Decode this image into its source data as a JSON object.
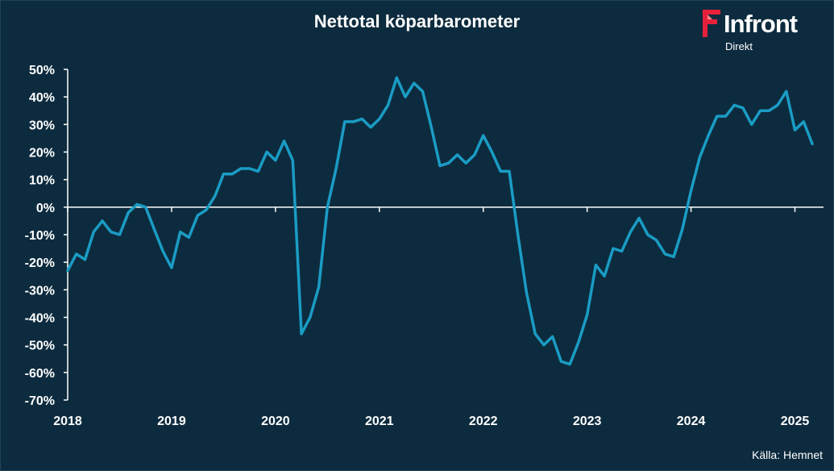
{
  "title": "Nettotal köparbarometer",
  "source": "Källa:  Hemnet",
  "logo": {
    "name": "Infront",
    "sub": "Direkt"
  },
  "colors": {
    "background": "#0d2b3e",
    "line": "#1a9cc4",
    "text": "#ffffff",
    "accent": "#e8213b"
  },
  "chart_data": {
    "type": "line",
    "title": "Nettotal köparbarometer",
    "ylim": [
      -70,
      50
    ],
    "yticks": [
      50,
      40,
      30,
      20,
      10,
      0,
      -10,
      -20,
      -30,
      -40,
      -50,
      -60,
      -70
    ],
    "ytick_labels": [
      "50%",
      "40%",
      "30%",
      "20%",
      "10%",
      "0%",
      "-10%",
      "-20%",
      "-30%",
      "-40%",
      "-50%",
      "-60%",
      "-70%"
    ],
    "xticks": [
      "2018",
      "2019",
      "2020",
      "2021",
      "2022",
      "2023",
      "2024",
      "2025"
    ],
    "xlim": [
      "2018-01",
      "2025-03"
    ],
    "grid": false,
    "legend": "none",
    "series": [
      {
        "values": [
          [
            "2018-01",
            -23
          ],
          [
            "2018-02",
            -17
          ],
          [
            "2018-03",
            -19
          ],
          [
            "2018-04",
            -9
          ],
          [
            "2018-05",
            -5
          ],
          [
            "2018-06",
            -9
          ],
          [
            "2018-07",
            -10
          ],
          [
            "2018-08",
            -2
          ],
          [
            "2018-09",
            1
          ],
          [
            "2018-10",
            0
          ],
          [
            "2018-11",
            -8
          ],
          [
            "2018-12",
            -16
          ],
          [
            "2019-01",
            -22
          ],
          [
            "2019-02",
            -9
          ],
          [
            "2019-03",
            -11
          ],
          [
            "2019-04",
            -3
          ],
          [
            "2019-05",
            -1
          ],
          [
            "2019-06",
            4
          ],
          [
            "2019-07",
            12
          ],
          [
            "2019-08",
            12
          ],
          [
            "2019-09",
            14
          ],
          [
            "2019-10",
            14
          ],
          [
            "2019-11",
            13
          ],
          [
            "2019-12",
            20
          ],
          [
            "2020-01",
            17
          ],
          [
            "2020-02",
            24
          ],
          [
            "2020-03",
            17
          ],
          [
            "2020-04",
            -46
          ],
          [
            "2020-05",
            -40
          ],
          [
            "2020-06",
            -29
          ],
          [
            "2020-07",
            0
          ],
          [
            "2020-08",
            14
          ],
          [
            "2020-09",
            31
          ],
          [
            "2020-10",
            31
          ],
          [
            "2020-11",
            32
          ],
          [
            "2020-12",
            29
          ],
          [
            "2021-01",
            32
          ],
          [
            "2021-02",
            37
          ],
          [
            "2021-03",
            47
          ],
          [
            "2021-04",
            40
          ],
          [
            "2021-05",
            45
          ],
          [
            "2021-06",
            42
          ],
          [
            "2021-07",
            29
          ],
          [
            "2021-08",
            15
          ],
          [
            "2021-09",
            16
          ],
          [
            "2021-10",
            19
          ],
          [
            "2021-11",
            16
          ],
          [
            "2021-12",
            19
          ],
          [
            "2022-01",
            26
          ],
          [
            "2022-02",
            20
          ],
          [
            "2022-03",
            13
          ],
          [
            "2022-04",
            13
          ],
          [
            "2022-05",
            -10
          ],
          [
            "2022-06",
            -31
          ],
          [
            "2022-07",
            -46
          ],
          [
            "2022-08",
            -50
          ],
          [
            "2022-09",
            -47
          ],
          [
            "2022-10",
            -56
          ],
          [
            "2022-11",
            -57
          ],
          [
            "2022-12",
            -49
          ],
          [
            "2023-01",
            -39
          ],
          [
            "2023-02",
            -21
          ],
          [
            "2023-03",
            -25
          ],
          [
            "2023-04",
            -15
          ],
          [
            "2023-05",
            -16
          ],
          [
            "2023-06",
            -9
          ],
          [
            "2023-07",
            -4
          ],
          [
            "2023-08",
            -10
          ],
          [
            "2023-09",
            -12
          ],
          [
            "2023-10",
            -17
          ],
          [
            "2023-11",
            -18
          ],
          [
            "2023-12",
            -8
          ],
          [
            "2024-01",
            6
          ],
          [
            "2024-02",
            18
          ],
          [
            "2024-03",
            26
          ],
          [
            "2024-04",
            33
          ],
          [
            "2024-05",
            33
          ],
          [
            "2024-06",
            37
          ],
          [
            "2024-07",
            36
          ],
          [
            "2024-08",
            30
          ],
          [
            "2024-09",
            35
          ],
          [
            "2024-10",
            35
          ],
          [
            "2024-11",
            37
          ],
          [
            "2024-12",
            42
          ],
          [
            "2025-01",
            28
          ],
          [
            "2025-02",
            31
          ],
          [
            "2025-03",
            23
          ]
        ]
      }
    ]
  }
}
